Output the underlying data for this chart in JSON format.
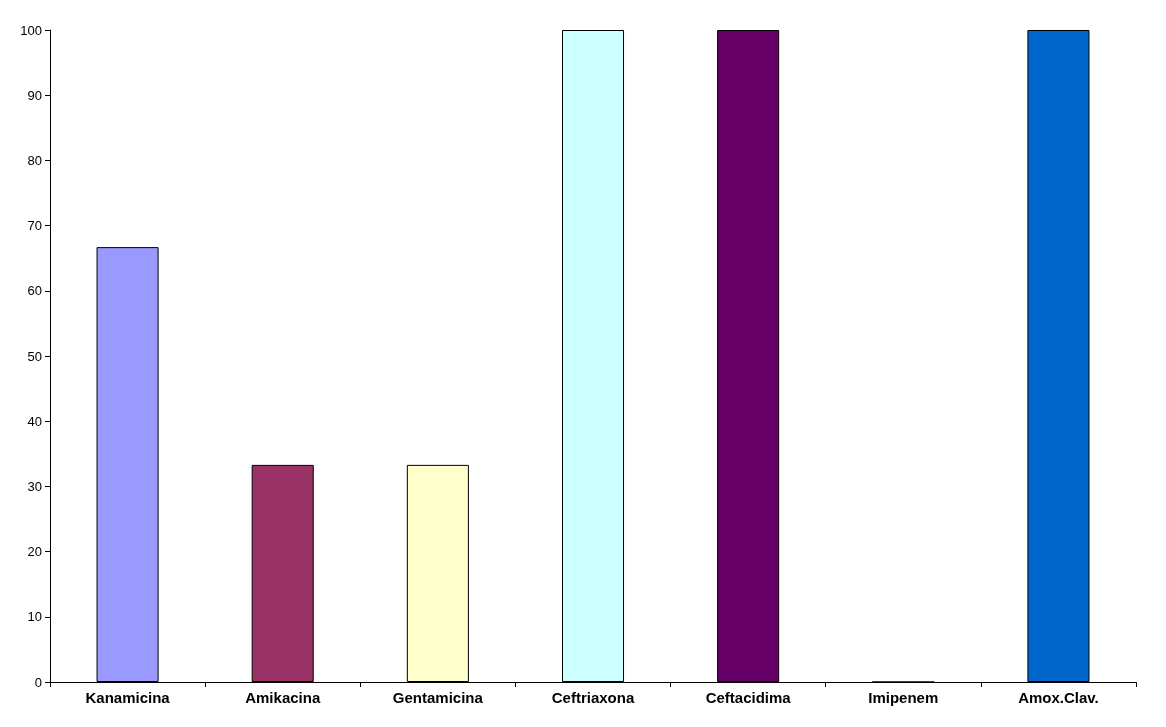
{
  "chart_data": {
    "type": "bar",
    "categories": [
      "Kanamicina",
      "Amikacina",
      "Gentamicina",
      "Ceftriaxona",
      "Ceftacidima",
      "Imipenem",
      "Amox.Clav."
    ],
    "values": [
      66.7,
      33.3,
      33.3,
      100,
      100,
      0,
      100
    ],
    "colors": [
      "#9999ff",
      "#993366",
      "#ffffcc",
      "#ccffff",
      "#660066",
      "#cc6666",
      "#0066cc"
    ],
    "ylim": [
      0,
      100
    ],
    "yticks": [
      0,
      10,
      20,
      30,
      40,
      50,
      60,
      70,
      80,
      90,
      100
    ],
    "grid": false
  }
}
